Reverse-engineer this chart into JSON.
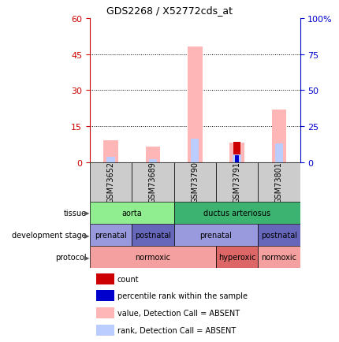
{
  "title": "GDS2268 / X52772cds_at",
  "samples": [
    "GSM73652",
    "GSM73689",
    "GSM73790",
    "GSM73791",
    "GSM73801"
  ],
  "ylim_left": [
    0,
    60
  ],
  "ylim_right": [
    0,
    100
  ],
  "yticks_left": [
    0,
    15,
    30,
    45,
    60
  ],
  "yticks_right": [
    0,
    25,
    50,
    75,
    100
  ],
  "ytick_labels_right": [
    "0",
    "25",
    "50",
    "75",
    "100%"
  ],
  "bars": {
    "GSM73652": {
      "value_absent": 9.0,
      "rank_absent": 3.5,
      "count": 0,
      "percentile": 0
    },
    "GSM73689": {
      "value_absent": 6.5,
      "rank_absent": 2.0,
      "count": 0,
      "percentile": 0
    },
    "GSM73790": {
      "value_absent": 48.0,
      "rank_absent": 16.0,
      "count": 0,
      "percentile": 0
    },
    "GSM73791": {
      "value_absent": 8.0,
      "rank_absent": 5.0,
      "count": 8.5,
      "percentile": 4.5
    },
    "GSM73801": {
      "value_absent": 22.0,
      "rank_absent": 13.0,
      "count": 0,
      "percentile": 0
    }
  },
  "tissue_row": [
    {
      "label": "aorta",
      "span": [
        0,
        2
      ],
      "color": "#90EE90"
    },
    {
      "label": "ductus arteriosus",
      "span": [
        2,
        5
      ],
      "color": "#3CB371"
    }
  ],
  "dev_stage_row": [
    {
      "label": "prenatal",
      "span": [
        0,
        1
      ],
      "color": "#9999DD"
    },
    {
      "label": "postnatal",
      "span": [
        1,
        2
      ],
      "color": "#6666BB"
    },
    {
      "label": "prenatal",
      "span": [
        2,
        4
      ],
      "color": "#9999DD"
    },
    {
      "label": "postnatal",
      "span": [
        4,
        5
      ],
      "color": "#6666BB"
    }
  ],
  "protocol_row": [
    {
      "label": "normoxic",
      "span": [
        0,
        3
      ],
      "color": "#F4A0A0"
    },
    {
      "label": "hyperoxic",
      "span": [
        3,
        4
      ],
      "color": "#DD6666"
    },
    {
      "label": "normoxic",
      "span": [
        4,
        5
      ],
      "color": "#F4A0A0"
    }
  ],
  "row_labels": [
    "tissue",
    "development stage",
    "protocol"
  ],
  "legend": [
    {
      "color": "#CC0000",
      "label": "count"
    },
    {
      "color": "#0000CC",
      "label": "percentile rank within the sample"
    },
    {
      "color": "#FFB6B6",
      "label": "value, Detection Call = ABSENT"
    },
    {
      "color": "#BBCCFF",
      "label": "rank, Detection Call = ABSENT"
    }
  ],
  "left_axis_color": "#CC0000",
  "right_axis_color": "#0000CC",
  "plot_bg": "#FFFFFF",
  "xaxis_bg": "#CCCCCC",
  "dotted_lines": [
    15,
    30,
    45
  ]
}
